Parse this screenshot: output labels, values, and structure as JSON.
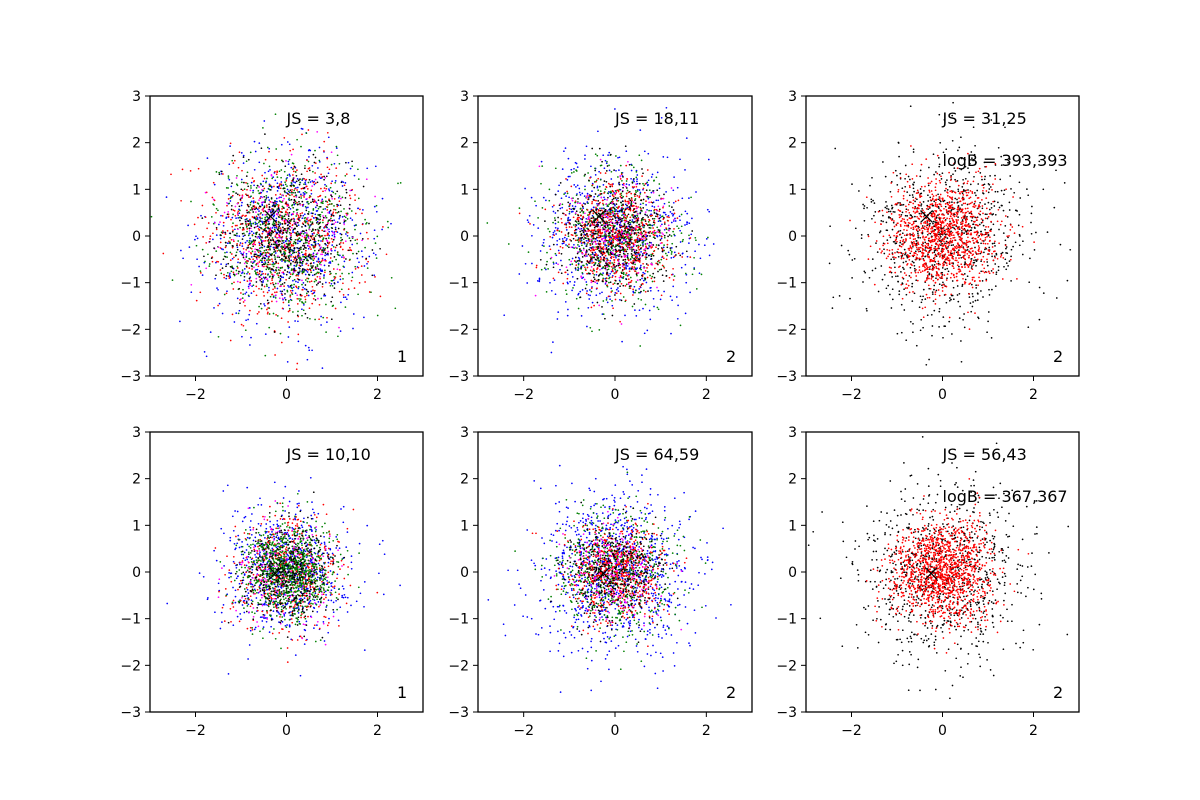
{
  "chart_data": [
    {
      "type": "scatter",
      "xlim": [
        -3,
        3
      ],
      "ylim": [
        -3,
        3
      ],
      "xticks": [
        -2,
        0,
        2
      ],
      "yticks": [
        -3,
        -2,
        -1,
        0,
        1,
        2,
        3
      ],
      "tick_labels": {
        "x": [
          "−2",
          "0",
          "2"
        ],
        "y": [
          "−3",
          "−2",
          "−1",
          "0",
          "1",
          "2",
          "3"
        ]
      },
      "grid": false,
      "annotations": {
        "js": "JS = 3,8",
        "logb": "",
        "corner": "1"
      },
      "marker": {
        "x": -0.35,
        "y": 0.42,
        "label": "×"
      },
      "series": [
        {
          "color": "#0000ff",
          "n": 700,
          "sd": 0.9,
          "cx": 0.0,
          "cy": 0.0
        },
        {
          "color": "#ff0000",
          "n": 700,
          "sd": 0.85,
          "cx": 0.0,
          "cy": 0.0
        },
        {
          "color": "#008000",
          "n": 700,
          "sd": 0.8,
          "cx": 0.0,
          "cy": 0.0
        },
        {
          "color": "#ff00ff",
          "n": 200,
          "sd": 0.75,
          "cx": 0.0,
          "cy": 0.0
        },
        {
          "color": "#000000",
          "n": 500,
          "sd": 0.7,
          "cx": 0.0,
          "cy": 0.0
        }
      ]
    },
    {
      "type": "scatter",
      "xlim": [
        -3,
        3
      ],
      "ylim": [
        -3,
        3
      ],
      "xticks": [
        -2,
        0,
        2
      ],
      "yticks": [
        -3,
        -2,
        -1,
        0,
        1,
        2,
        3
      ],
      "tick_labels": {
        "x": [
          "−2",
          "0",
          "2"
        ],
        "y": [
          "−3",
          "−2",
          "−1",
          "0",
          "1",
          "2",
          "3"
        ]
      },
      "grid": false,
      "annotations": {
        "js": "JS = 18,11",
        "logb": "",
        "corner": "2"
      },
      "marker": {
        "x": -0.35,
        "y": 0.42,
        "label": "×"
      },
      "series": [
        {
          "color": "#0000ff",
          "n": 700,
          "sd": 0.85,
          "cx": 0.0,
          "cy": 0.0
        },
        {
          "color": "#008000",
          "n": 600,
          "sd": 0.7,
          "cx": 0.0,
          "cy": 0.0
        },
        {
          "color": "#ff0000",
          "n": 700,
          "sd": 0.6,
          "cx": 0.0,
          "cy": 0.0
        },
        {
          "color": "#ff00ff",
          "n": 200,
          "sd": 0.6,
          "cx": 0.0,
          "cy": 0.0
        },
        {
          "color": "#000000",
          "n": 500,
          "sd": 0.6,
          "cx": 0.0,
          "cy": 0.0
        }
      ]
    },
    {
      "type": "scatter",
      "xlim": [
        -3,
        3
      ],
      "ylim": [
        -3,
        3
      ],
      "xticks": [
        -2,
        0,
        2
      ],
      "yticks": [
        -3,
        -2,
        -1,
        0,
        1,
        2,
        3
      ],
      "tick_labels": {
        "x": [
          "−2",
          "0",
          "2"
        ],
        "y": [
          "−3",
          "−2",
          "−1",
          "0",
          "1",
          "2",
          "3"
        ]
      },
      "grid": false,
      "annotations": {
        "js": "JS = 31,25",
        "logb": "logB = 393,393",
        "corner": "2"
      },
      "marker": {
        "x": -0.35,
        "y": 0.42,
        "label": "×"
      },
      "series": [
        {
          "color": "#000000",
          "n": 900,
          "sd": 0.95,
          "cx": 0.0,
          "cy": 0.0
        },
        {
          "color": "#ff0000",
          "n": 1200,
          "sd": 0.6,
          "cx": 0.0,
          "cy": 0.0
        }
      ]
    },
    {
      "type": "scatter",
      "xlim": [
        -3,
        3
      ],
      "ylim": [
        -3,
        3
      ],
      "xticks": [
        -2,
        0,
        2
      ],
      "yticks": [
        -3,
        -2,
        -1,
        0,
        1,
        2,
        3
      ],
      "tick_labels": {
        "x": [
          "−2",
          "0",
          "2"
        ],
        "y": [
          "−3",
          "−2",
          "−1",
          "0",
          "1",
          "2",
          "3"
        ]
      },
      "grid": false,
      "annotations": {
        "js": "JS = 10,10",
        "logb": "",
        "corner": "1"
      },
      "marker": {
        "x": -0.25,
        "y": -0.03,
        "label": "×"
      },
      "series": [
        {
          "color": "#0000ff",
          "n": 700,
          "sd": 0.7,
          "cx": 0.0,
          "cy": 0.0
        },
        {
          "color": "#ff0000",
          "n": 500,
          "sd": 0.6,
          "cx": 0.0,
          "cy": 0.0
        },
        {
          "color": "#ff00ff",
          "n": 200,
          "sd": 0.55,
          "cx": 0.0,
          "cy": 0.0
        },
        {
          "color": "#008000",
          "n": 900,
          "sd": 0.5,
          "cx": 0.0,
          "cy": 0.0
        },
        {
          "color": "#000000",
          "n": 400,
          "sd": 0.5,
          "cx": 0.0,
          "cy": 0.0
        }
      ]
    },
    {
      "type": "scatter",
      "xlim": [
        -3,
        3
      ],
      "ylim": [
        -3,
        3
      ],
      "xticks": [
        -2,
        0,
        2
      ],
      "yticks": [
        -3,
        -2,
        -1,
        0,
        1,
        2,
        3
      ],
      "tick_labels": {
        "x": [
          "−2",
          "0",
          "2"
        ],
        "y": [
          "−3",
          "−2",
          "−1",
          "0",
          "1",
          "2",
          "3"
        ]
      },
      "grid": false,
      "annotations": {
        "js": "JS = 64,59",
        "logb": "",
        "corner": "2"
      },
      "marker": {
        "x": -0.25,
        "y": -0.03,
        "label": "×"
      },
      "series": [
        {
          "color": "#0000ff",
          "n": 900,
          "sd": 0.9,
          "cx": 0.0,
          "cy": 0.0
        },
        {
          "color": "#008000",
          "n": 600,
          "sd": 0.65,
          "cx": 0.0,
          "cy": 0.0
        },
        {
          "color": "#ff0000",
          "n": 600,
          "sd": 0.5,
          "cx": 0.0,
          "cy": 0.0
        },
        {
          "color": "#ff00ff",
          "n": 200,
          "sd": 0.5,
          "cx": 0.0,
          "cy": 0.0
        },
        {
          "color": "#000000",
          "n": 400,
          "sd": 0.5,
          "cx": 0.0,
          "cy": 0.0
        }
      ]
    },
    {
      "type": "scatter",
      "xlim": [
        -3,
        3
      ],
      "ylim": [
        -3,
        3
      ],
      "xticks": [
        -2,
        0,
        2
      ],
      "yticks": [
        -3,
        -2,
        -1,
        0,
        1,
        2,
        3
      ],
      "tick_labels": {
        "x": [
          "−2",
          "0",
          "2"
        ],
        "y": [
          "−3",
          "−2",
          "−1",
          "0",
          "1",
          "2",
          "3"
        ]
      },
      "grid": false,
      "annotations": {
        "js": "JS = 56,43",
        "logb": "logB = 367,367",
        "corner": "2"
      },
      "marker": {
        "x": -0.25,
        "y": -0.03,
        "label": "×"
      },
      "series": [
        {
          "color": "#000000",
          "n": 900,
          "sd": 0.9,
          "cx": 0.0,
          "cy": 0.0
        },
        {
          "color": "#ff0000",
          "n": 1300,
          "sd": 0.55,
          "cx": 0.0,
          "cy": 0.0
        }
      ]
    }
  ]
}
